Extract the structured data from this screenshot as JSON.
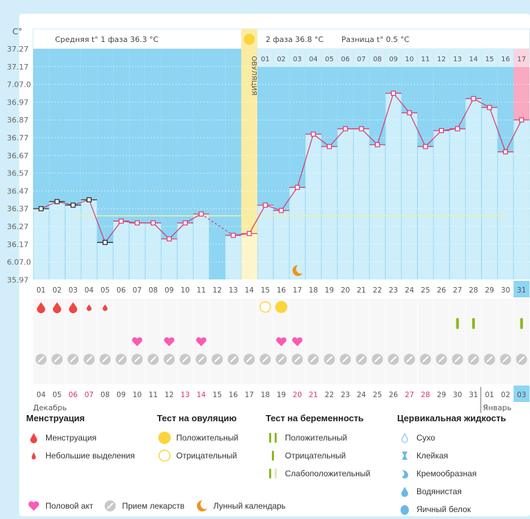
{
  "header": {
    "unit": "C°",
    "phase1_avg": "Средняя t° 1 фаза 36.3 °C",
    "phase2_avg": "2 фаза 36.8 °C",
    "difference": "Разница t° 0.5 °C",
    "ovulation_label": "ОВУЛЯЦИЯ"
  },
  "chart_data": {
    "type": "line",
    "y_tick_labels": [
      "37.27",
      "37.17",
      "7.07.0",
      "36.97",
      "36.87",
      "36.77",
      "36.67",
      "36.57",
      "36.47",
      "36.37",
      "36.27",
      "36.17",
      "6.07.0",
      "35.97"
    ],
    "y_ticks": [
      37.27,
      37.17,
      37.07,
      36.97,
      36.87,
      36.77,
      36.67,
      36.57,
      36.47,
      36.37,
      36.27,
      36.17,
      36.07,
      35.97
    ],
    "ylim": [
      35.97,
      37.27
    ],
    "cycle_days": [
      "01",
      "02",
      "03",
      "04",
      "05",
      "06",
      "07",
      "08",
      "09",
      "10",
      "11",
      "12",
      "13",
      "14",
      "15",
      "16",
      "17",
      "18",
      "19",
      "20",
      "21",
      "22",
      "23",
      "24",
      "25",
      "26",
      "27",
      "28",
      "29",
      "30",
      "31"
    ],
    "phase2_days": [
      "01",
      "02",
      "03",
      "04",
      "05",
      "06",
      "07",
      "08",
      "09",
      "10",
      "11",
      "12",
      "13",
      "14",
      "15",
      "16",
      "17"
    ],
    "temperatures": [
      36.37,
      36.41,
      36.39,
      36.42,
      36.18,
      36.3,
      36.29,
      36.29,
      36.2,
      36.29,
      36.34,
      null,
      36.22,
      36.23,
      36.39,
      36.36,
      36.49,
      36.79,
      36.72,
      36.82,
      36.82,
      36.73,
      37.02,
      36.91,
      36.72,
      36.81,
      36.82,
      36.99,
      36.94,
      36.69,
      36.87
    ],
    "excluded_days": [
      1,
      2,
      3,
      4,
      5
    ],
    "coverline": 36.33,
    "ovulation_day": 14,
    "current_day": 31,
    "grid": true
  },
  "calendar": {
    "dates": [
      "04",
      "05",
      "06",
      "07",
      "08",
      "09",
      "10",
      "11",
      "12",
      "13",
      "14",
      "15",
      "16",
      "17",
      "18",
      "19",
      "20",
      "21",
      "22",
      "23",
      "24",
      "25",
      "26",
      "27",
      "28",
      "29",
      "30",
      "31",
      "01",
      "02",
      "03"
    ],
    "weekend_dates_idx": [
      2,
      3,
      9,
      10,
      16,
      17,
      23,
      24
    ],
    "month1": "Декабрь",
    "month2": "Январь"
  },
  "markers": {
    "menstruation": {
      "1": "heavy",
      "2": "heavy",
      "3": "heavy",
      "4": "light",
      "5": "light"
    },
    "ovulation_test": {
      "15": "negative",
      "16": "positive"
    },
    "pregnancy_test": {
      "27": "negative",
      "28": "negative",
      "31": "negative"
    },
    "intercourse": [
      7,
      9,
      11,
      16,
      17
    ],
    "medication": [
      1,
      2,
      3,
      4,
      5,
      6,
      7,
      8,
      9,
      10,
      11,
      12,
      13,
      14,
      15,
      16,
      17,
      18,
      19,
      20,
      21,
      22,
      23,
      24,
      25,
      26,
      27,
      28,
      29,
      30,
      31
    ],
    "moon": [
      17
    ]
  },
  "colors": {
    "dark_bg": "#8dd5f2",
    "light_bar": "#cdeefb",
    "ovulation": "#fbeca4",
    "current": "#f9a9c0",
    "line": "#d9336b",
    "menstruation": "#f04545",
    "heart": "#f95bb8",
    "ovu_test": "#fcd43d",
    "preg_test": "#8cb820",
    "pill": "#c8c8c8",
    "moon": "#f0921e",
    "weekend": "#d9336b"
  },
  "legend": {
    "menstruation": {
      "title": "Менструация",
      "items": [
        "Менструация",
        "Небольшие выделения"
      ]
    },
    "ovulation_test": {
      "title": "Тест на овуляцию",
      "items": [
        "Положительный",
        "Отрицательный"
      ]
    },
    "pregnancy_test": {
      "title": "Тест на беременность",
      "items": [
        "Положительный",
        "Отрицательный",
        "Слабоположительный"
      ]
    },
    "cervical": {
      "title": "Цервикальная жидкость",
      "items": [
        "Сухо",
        "Клейкая",
        "Кремообразная",
        "Водянистая",
        "Яичный белок"
      ]
    },
    "other": [
      "Половой акт",
      "Прием лекарств",
      "Лунный календарь"
    ]
  }
}
